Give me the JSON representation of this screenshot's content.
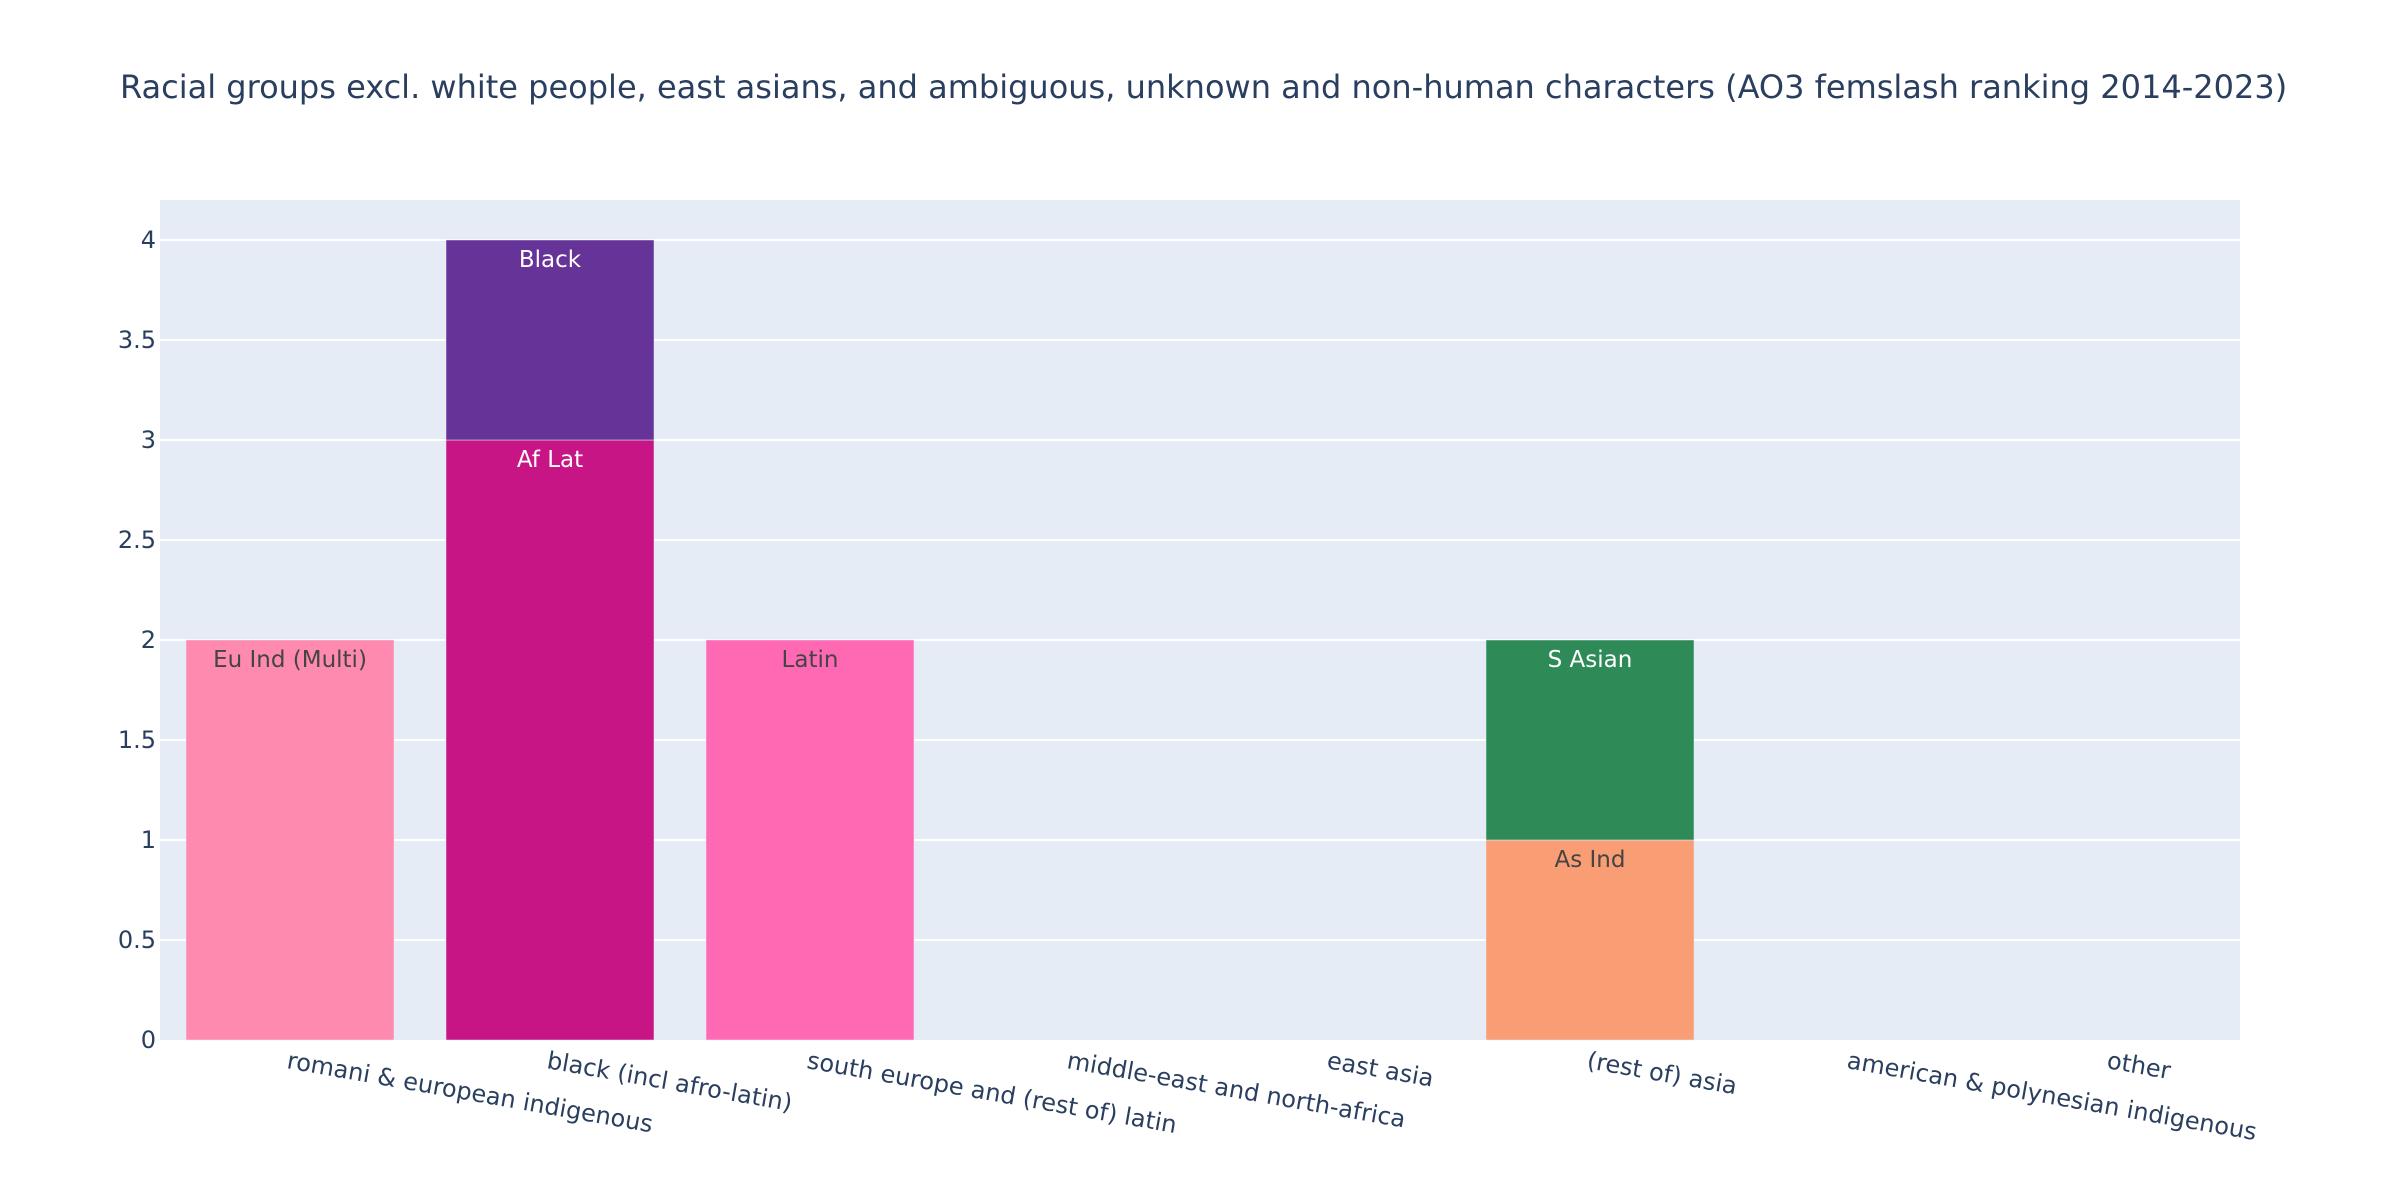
{
  "chart_data": {
    "type": "bar",
    "barmode": "stack",
    "title": "Racial groups excl. white people, east asians, and ambiguous, unknown and non-human characters (AO3 femslash ranking 2014-2023)",
    "xlabel": "",
    "ylabel": "",
    "categories": [
      "romani & european indigenous",
      "black (incl afro-latin)",
      "south europe and (rest of) latin",
      "middle-east and north-africa",
      "east asia",
      "(rest of) asia",
      "american & polynesian indigenous",
      "other"
    ],
    "ylim": [
      0,
      4.2
    ],
    "yticks": [
      0,
      0.5,
      1,
      1.5,
      2,
      2.5,
      3,
      3.5,
      4
    ],
    "ytick_labels": [
      "0",
      "0.5",
      "1",
      "1.5",
      "2",
      "2.5",
      "3",
      "3.5",
      "4"
    ],
    "grid": true,
    "plot_background": "#e5ecf6",
    "series": [
      {
        "name": "Eu Ind (Multi)",
        "color": "#ff8ab0",
        "text_color": "#444444",
        "values": [
          2,
          0,
          0,
          0,
          0,
          0,
          0,
          0
        ]
      },
      {
        "name": "Af Lat",
        "color": "#c71585",
        "text_color": "#ffffff",
        "values": [
          0,
          3,
          0,
          0,
          0,
          0,
          0,
          0
        ]
      },
      {
        "name": "Black",
        "color": "#663399",
        "text_color": "#ffffff",
        "values": [
          0,
          1,
          0,
          0,
          0,
          0,
          0,
          0
        ]
      },
      {
        "name": "Latin",
        "color": "#ff69b4",
        "text_color": "#444444",
        "values": [
          0,
          0,
          2,
          0,
          0,
          0,
          0,
          0
        ]
      },
      {
        "name": "As Ind",
        "color": "#f89d74",
        "text_color": "#444444",
        "values": [
          0,
          0,
          0,
          0,
          0,
          1,
          0,
          0
        ]
      },
      {
        "name": "S Asian",
        "color": "#2e8b57",
        "text_color": "#ffffff",
        "values": [
          0,
          0,
          0,
          0,
          0,
          1,
          0,
          0
        ]
      }
    ]
  }
}
